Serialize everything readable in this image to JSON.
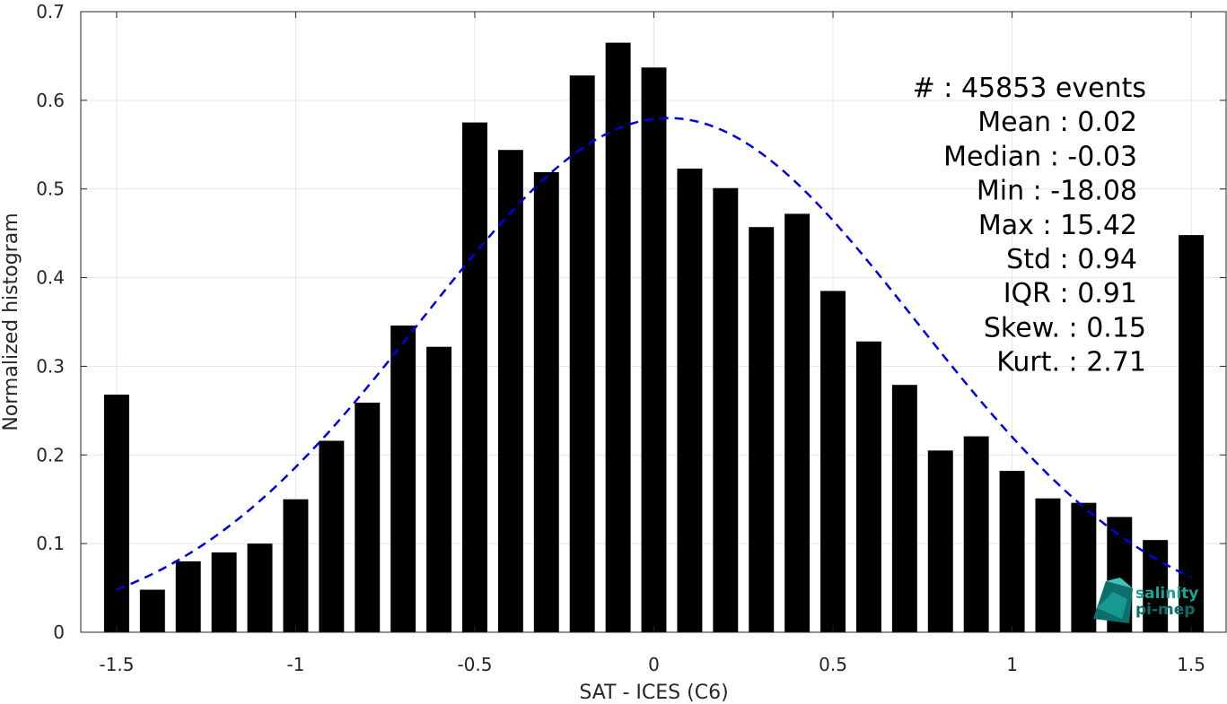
{
  "chart_data": {
    "type": "bar",
    "xlabel": "SAT - ICES (C6)",
    "ylabel": "Normalized histogram",
    "xlim": [
      -1.6,
      1.6
    ],
    "ylim": [
      0,
      0.7
    ],
    "grid": true,
    "x_ticks": [
      -1.5,
      -1,
      -0.5,
      0,
      0.5,
      1,
      1.5
    ],
    "x_tick_labels": [
      "-1.5",
      "-1",
      "-0.5",
      "0",
      "0.5",
      "1",
      "1.5"
    ],
    "y_ticks": [
      0,
      0.1,
      0.2,
      0.3,
      0.4,
      0.5,
      0.6,
      0.7
    ],
    "y_tick_labels": [
      "0",
      "0.1",
      "0.2",
      "0.3",
      "0.4",
      "0.5",
      "0.6",
      "0.7"
    ],
    "bar_width": 0.07,
    "bars": {
      "x": [
        -1.5,
        -1.4,
        -1.3,
        -1.2,
        -1.1,
        -1.0,
        -0.9,
        -0.8,
        -0.7,
        -0.6,
        -0.5,
        -0.4,
        -0.3,
        -0.2,
        -0.1,
        0.0,
        0.1,
        0.2,
        0.3,
        0.4,
        0.5,
        0.6,
        0.7,
        0.8,
        0.9,
        1.0,
        1.1,
        1.2,
        1.3,
        1.4,
        1.5
      ],
      "values": [
        0.268,
        0.048,
        0.08,
        0.09,
        0.1,
        0.15,
        0.216,
        0.259,
        0.346,
        0.322,
        0.575,
        0.544,
        0.519,
        0.628,
        0.665,
        0.637,
        0.523,
        0.501,
        0.457,
        0.472,
        0.385,
        0.328,
        0.279,
        0.205,
        0.221,
        0.182,
        0.151,
        0.146,
        0.13,
        0.104,
        0.448
      ],
      "color": "#000000"
    },
    "fit_curve": {
      "style": "dashed",
      "color": "#0000e6",
      "mean": 0.04,
      "std": 0.69,
      "peak": 0.58,
      "x_range": [
        -1.5,
        1.5
      ]
    },
    "stats_lines": [
      "#  : 45853 events",
      "Mean : 0.02",
      "Median : -0.03",
      "Min : -18.08",
      "Max : 15.42",
      "Std : 0.94",
      "IQR : 0.91",
      "Skew. : 0.15",
      "Kurt. : 2.71"
    ]
  },
  "logo": {
    "line1": "salinity",
    "line2": "pi-mep",
    "color": "#1aa39a"
  }
}
